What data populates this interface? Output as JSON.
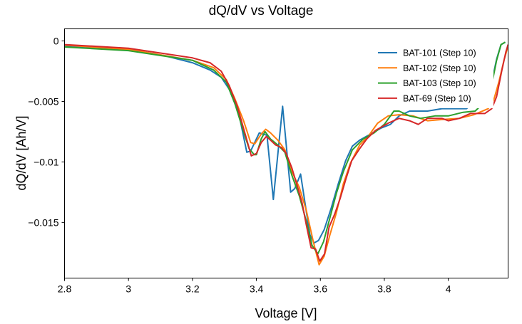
{
  "chart_data": {
    "type": "line",
    "title": "dQ/dV vs Voltage",
    "xlabel": "Voltage [V]",
    "ylabel": "dQ/dV [Ah/V]",
    "xlim": [
      2.8,
      4.187
    ],
    "ylim": [
      -0.0196,
      0.001
    ],
    "xticks": [
      2.8,
      3.0,
      3.2,
      3.4,
      3.6,
      3.8,
      4.0
    ],
    "xtick_labels": [
      "2.8",
      "3",
      "3.2",
      "3.4",
      "3.6",
      "3.8",
      "4"
    ],
    "yticks": [
      0,
      -0.005,
      -0.01,
      -0.015
    ],
    "ytick_labels": [
      "0",
      "−0.005",
      "−0.01",
      "−0.015"
    ],
    "grid": false,
    "legend_position": "top-right",
    "series": [
      {
        "name": "BAT-101 (Step 10)",
        "color": "#1f77b4",
        "x": [
          2.8,
          3.0,
          3.11,
          3.2,
          3.255,
          3.29,
          3.315,
          3.345,
          3.37,
          3.382,
          3.409,
          3.433,
          3.453,
          3.482,
          3.507,
          3.52,
          3.538,
          3.567,
          3.58,
          3.594,
          3.612,
          3.634,
          3.656,
          3.679,
          3.7,
          3.723,
          3.757,
          3.79,
          3.819,
          3.846,
          3.879,
          3.935,
          3.98,
          4.024,
          4.057,
          4.12,
          4.136,
          4.151,
          4.165,
          4.178
        ],
        "y": [
          -0.0004,
          -0.0007,
          -0.0012,
          -0.0018,
          -0.0024,
          -0.003,
          -0.004,
          -0.006,
          -0.0092,
          -0.0091,
          -0.0076,
          -0.0078,
          -0.0131,
          -0.0054,
          -0.0125,
          -0.0122,
          -0.011,
          -0.016,
          -0.0167,
          -0.0165,
          -0.0156,
          -0.0138,
          -0.0118,
          -0.0099,
          -0.0087,
          -0.0082,
          -0.0077,
          -0.0072,
          -0.0069,
          -0.0062,
          -0.0058,
          -0.0058,
          -0.0056,
          -0.0056,
          -0.0056,
          -0.0043,
          -0.0034,
          -0.0015,
          -0.0003,
          -0.0001
        ]
      },
      {
        "name": "BAT-102 (Step 10)",
        "color": "#ff7f0e",
        "x": [
          2.8,
          3.0,
          3.2,
          3.266,
          3.306,
          3.333,
          3.36,
          3.382,
          3.395,
          3.415,
          3.429,
          3.444,
          3.467,
          3.489,
          3.511,
          3.534,
          3.556,
          3.578,
          3.596,
          3.612,
          3.629,
          3.65,
          3.672,
          3.694,
          3.723,
          3.752,
          3.779,
          3.812,
          3.846,
          3.89,
          3.935,
          3.98,
          4.035,
          4.08,
          4.125,
          4.142,
          4.158,
          4.174,
          4.185
        ],
        "y": [
          -0.00035,
          -0.0007,
          -0.0016,
          -0.0022,
          -0.0032,
          -0.0048,
          -0.0066,
          -0.0084,
          -0.0085,
          -0.0077,
          -0.0073,
          -0.0076,
          -0.0082,
          -0.009,
          -0.0108,
          -0.0121,
          -0.014,
          -0.0166,
          -0.0185,
          -0.0178,
          -0.0161,
          -0.0142,
          -0.0118,
          -0.0101,
          -0.0086,
          -0.0078,
          -0.0068,
          -0.0062,
          -0.0061,
          -0.0062,
          -0.0066,
          -0.0065,
          -0.0064,
          -0.0061,
          -0.0056,
          -0.0049,
          -0.0034,
          -0.0016,
          -0.0006
        ]
      },
      {
        "name": "BAT-103 (Step 10)",
        "color": "#2ca02c",
        "x": [
          2.8,
          3.0,
          3.2,
          3.266,
          3.306,
          3.333,
          3.36,
          3.377,
          3.393,
          3.4,
          3.415,
          3.427,
          3.444,
          3.467,
          3.489,
          3.511,
          3.534,
          3.556,
          3.574,
          3.592,
          3.61,
          3.627,
          3.65,
          3.672,
          3.7,
          3.734,
          3.768,
          3.8,
          3.83,
          3.846,
          3.879,
          3.913,
          3.958,
          4.0,
          4.046,
          4.084,
          4.12,
          4.136,
          4.151,
          4.165,
          4.178
        ],
        "y": [
          -0.0005,
          -0.0008,
          -0.0016,
          -0.0024,
          -0.0034,
          -0.0052,
          -0.0075,
          -0.0089,
          -0.0094,
          -0.0094,
          -0.0081,
          -0.0075,
          -0.0081,
          -0.0086,
          -0.0092,
          -0.0111,
          -0.0128,
          -0.0149,
          -0.0169,
          -0.0176,
          -0.0166,
          -0.0149,
          -0.0126,
          -0.0108,
          -0.009,
          -0.0081,
          -0.0076,
          -0.0069,
          -0.0058,
          -0.0058,
          -0.0062,
          -0.0064,
          -0.0062,
          -0.0062,
          -0.0059,
          -0.0058,
          -0.0049,
          -0.0036,
          -0.0016,
          -0.0003,
          -0.0001
        ]
      },
      {
        "name": "BAT-69 (Step 10)",
        "color": "#d62728",
        "x": [
          2.8,
          3.0,
          3.2,
          3.255,
          3.29,
          3.315,
          3.34,
          3.366,
          3.384,
          3.4,
          3.415,
          3.431,
          3.444,
          3.46,
          3.478,
          3.493,
          3.511,
          3.53,
          3.543,
          3.556,
          3.571,
          3.585,
          3.598,
          3.613,
          3.627,
          3.645,
          3.662,
          3.68,
          3.698,
          3.723,
          3.745,
          3.772,
          3.812,
          3.846,
          3.879,
          3.906,
          3.935,
          3.98,
          4.0,
          4.035,
          4.069,
          4.114,
          4.136,
          4.151,
          4.167,
          4.18,
          4.187
        ],
        "y": [
          -0.0003,
          -0.0006,
          -0.0014,
          -0.0018,
          -0.0025,
          -0.0037,
          -0.0054,
          -0.0078,
          -0.0095,
          -0.0093,
          -0.0084,
          -0.0079,
          -0.0082,
          -0.0086,
          -0.0088,
          -0.0093,
          -0.0105,
          -0.0122,
          -0.0134,
          -0.0152,
          -0.0171,
          -0.0172,
          -0.0182,
          -0.0176,
          -0.0154,
          -0.0143,
          -0.013,
          -0.0114,
          -0.0099,
          -0.0089,
          -0.0081,
          -0.0074,
          -0.0068,
          -0.0064,
          -0.0066,
          -0.0069,
          -0.0064,
          -0.0064,
          -0.0066,
          -0.0064,
          -0.006,
          -0.006,
          -0.0056,
          -0.0046,
          -0.0025,
          -0.0009,
          -0.0003
        ]
      }
    ]
  }
}
